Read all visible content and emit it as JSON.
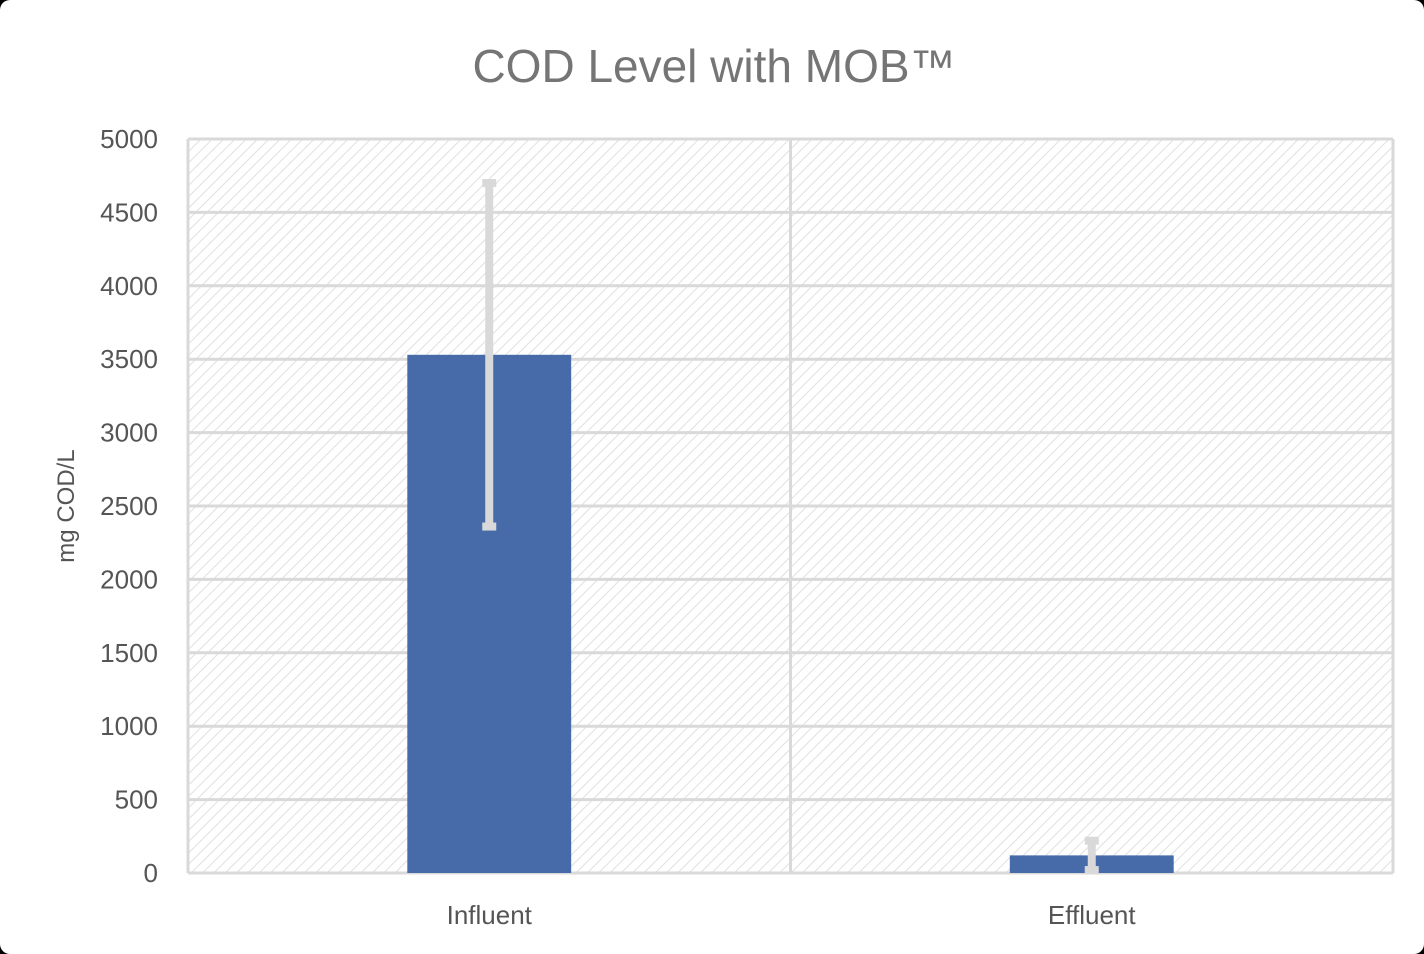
{
  "chart_data": {
    "type": "bar",
    "title": "COD Level with MOB™",
    "xlabel": "",
    "ylabel": "mg COD/L",
    "categories": [
      "Influent",
      "Effluent"
    ],
    "series": [
      {
        "values": [
          3530,
          120
        ],
        "error_upper": [
          4700,
          220
        ],
        "error_lower": [
          2360,
          20
        ]
      }
    ],
    "ylim": [
      0,
      5000
    ],
    "yticks": [
      "0",
      "500",
      "1000",
      "1500",
      "2000",
      "2500",
      "3000",
      "3500",
      "4000",
      "4500",
      "5000"
    ],
    "grid": true,
    "legend": "none",
    "colors": {
      "bar": "#466ba8",
      "error_bar": "#d9d9d9",
      "gridline": "#d9d9d9",
      "hatch": "#e0e0e0",
      "title": "#757575"
    }
  }
}
